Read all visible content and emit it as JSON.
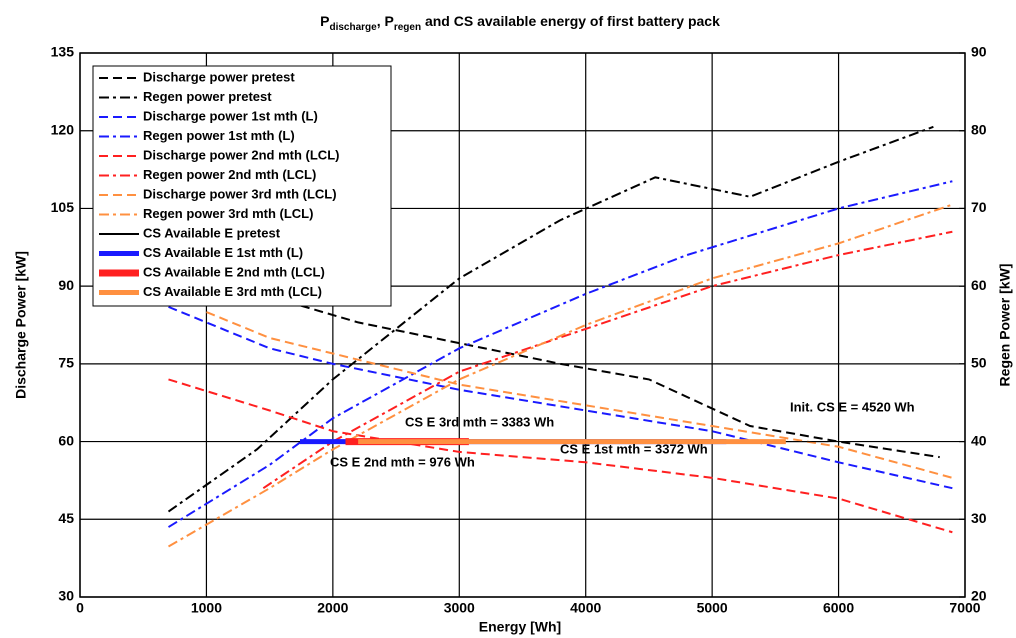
{
  "chart_data": {
    "type": "line",
    "title": [
      {
        "text": "P"
      },
      {
        "text": "discharge",
        "sub": true
      },
      {
        "text": ", P"
      },
      {
        "text": "regen",
        "sub": true
      },
      {
        "text": " and CS available energy of first battery pack"
      }
    ],
    "xlabel": "Energy [Wh]",
    "ylabel": "Discharge Power [kW]",
    "y2label": "Regen Power [kW]",
    "xlim": [
      0,
      7000
    ],
    "xticks": [
      0,
      1000,
      2000,
      3000,
      4000,
      5000,
      6000,
      7000
    ],
    "ylim": [
      30,
      135
    ],
    "yticks": [
      30,
      45,
      60,
      75,
      90,
      105,
      120,
      135
    ],
    "y2lim": [
      20,
      90
    ],
    "y2ticks": [
      20,
      30,
      40,
      50,
      60,
      70,
      80,
      90
    ],
    "grid": true,
    "legend": "upper left",
    "series": [
      {
        "name": "Discharge power pretest",
        "color": "#000000",
        "style": "dashed",
        "width": 2,
        "x": [
          700,
          1500,
          2200,
          3000,
          3800,
          4500,
          5300,
          6000,
          6800
        ],
        "values": [
          95,
          88,
          83,
          79,
          75,
          72,
          63,
          60,
          57
        ]
      },
      {
        "name": "Regen power pretest",
        "color": "#000000",
        "style": "dashdot",
        "width": 2,
        "axis": "y2",
        "x": [
          700,
          1400,
          2000,
          3000,
          3800,
          4550,
          5300,
          6000,
          6750
        ],
        "values": [
          31,
          39,
          48,
          61,
          68.5,
          74,
          71.5,
          76,
          80.5
        ]
      },
      {
        "name": "Discharge power 1st mth (L)",
        "color": "#1a1aff",
        "style": "dashed",
        "width": 2,
        "x": [
          700,
          1000,
          1500,
          2000,
          3000,
          4000,
          5000,
          6000,
          6900
        ],
        "values": [
          86,
          83,
          78,
          75,
          70,
          66,
          62,
          56,
          51
        ]
      },
      {
        "name": "Regen power 1st mth (L)",
        "color": "#1a1aff",
        "style": "dashdot",
        "width": 2,
        "axis": "y2",
        "x": [
          700,
          1500,
          2000,
          3000,
          4000,
          4800,
          6000,
          6900
        ],
        "values": [
          29,
          37,
          43,
          52,
          59,
          64,
          70,
          73.5
        ]
      },
      {
        "name": "Discharge power 2nd mth (LCL)",
        "color": "#ff2020",
        "style": "dashed",
        "width": 2,
        "x": [
          700,
          1500,
          2000,
          3000,
          4000,
          5000,
          6000,
          6900
        ],
        "values": [
          72,
          66,
          62,
          58,
          56,
          53,
          49,
          42.5
        ]
      },
      {
        "name": "Regen power 2nd mth (LCL)",
        "color": "#ff2020",
        "style": "dashdot",
        "width": 2,
        "axis": "y2",
        "x": [
          1450,
          2000,
          3000,
          4000,
          5000,
          6000,
          6900
        ],
        "values": [
          34,
          40,
          49,
          54.5,
          60,
          64,
          67
        ]
      },
      {
        "name": "Discharge power 3rd mth (LCL)",
        "color": "#ff9040",
        "style": "dashed",
        "width": 2,
        "x": [
          1000,
          1500,
          2000,
          3000,
          4000,
          5000,
          6000,
          6900
        ],
        "values": [
          85,
          80,
          77,
          71,
          67,
          63,
          59,
          53
        ]
      },
      {
        "name": "Regen power 3rd mth (LCL)",
        "color": "#ff9040",
        "style": "dashdot",
        "width": 2,
        "axis": "y2",
        "x": [
          700,
          1500,
          2000,
          3000,
          4000,
          5000,
          6000,
          6900
        ],
        "values": [
          26.5,
          34,
          39,
          48,
          55,
          61,
          65.5,
          70.5
        ]
      },
      {
        "name": "CS Available E pretest",
        "color": "#000000",
        "style": "solid",
        "width": 1,
        "x": [
          1400,
          5920
        ],
        "values": [
          60,
          60
        ]
      },
      {
        "name": "CS Available E 1st mth (L)",
        "color": "#1a1aff",
        "style": "solid",
        "width": 5,
        "x": [
          1740,
          5112
        ],
        "values": [
          60,
          60
        ]
      },
      {
        "name": "CS Available E 2nd mth (LCL)",
        "color": "#ff2020",
        "style": "solid",
        "width": 7,
        "x": [
          2100,
          3076
        ],
        "values": [
          60,
          60
        ]
      },
      {
        "name": "CS Available E 3rd mth (LCL)",
        "color": "#ff9040",
        "style": "solid",
        "width": 5,
        "x": [
          2200,
          5583
        ],
        "values": [
          60,
          60
        ]
      }
    ],
    "annotations": [
      {
        "text": "Init. CS E = 4520 Wh",
        "color": "#000000"
      },
      {
        "text": "CS E 3rd mth = 3383 Wh",
        "color": "#ff9040"
      },
      {
        "text": "CS E 1st mth = 3372 Wh",
        "color": "#1a1aff"
      },
      {
        "text": "CS E 2nd mth = 976 Wh",
        "color": "#ff2020"
      }
    ]
  }
}
